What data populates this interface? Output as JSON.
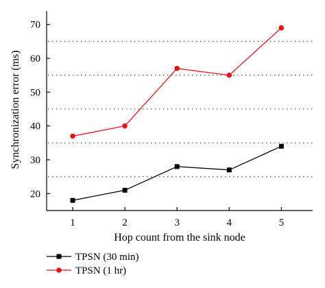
{
  "chart_data": {
    "type": "line",
    "title": "",
    "xlabel": "Hop count from the sink node",
    "ylabel": "Synchronization error (ms)",
    "x": [
      1,
      2,
      3,
      4,
      5
    ],
    "x_ticks": [
      "1",
      "2",
      "3",
      "4",
      "5"
    ],
    "y_ticks": [
      "20",
      "30",
      "40",
      "50",
      "60",
      "70"
    ],
    "xlim": [
      0.5,
      5.6
    ],
    "ylim": [
      15,
      74
    ],
    "grid_y": [
      25,
      35,
      45,
      55,
      65
    ],
    "grid_style": "dotted horizontal lines",
    "legend_position": "bottom-left, below the plot",
    "series": [
      {
        "name": "TPSN (30 min)",
        "values": [
          18,
          21,
          28,
          27,
          34
        ],
        "color": "#000000",
        "marker": "square"
      },
      {
        "name": "TPSN (1 hr)",
        "values": [
          37,
          40,
          57,
          55,
          69
        ],
        "color": "#e0161b",
        "marker": "circle"
      }
    ]
  }
}
